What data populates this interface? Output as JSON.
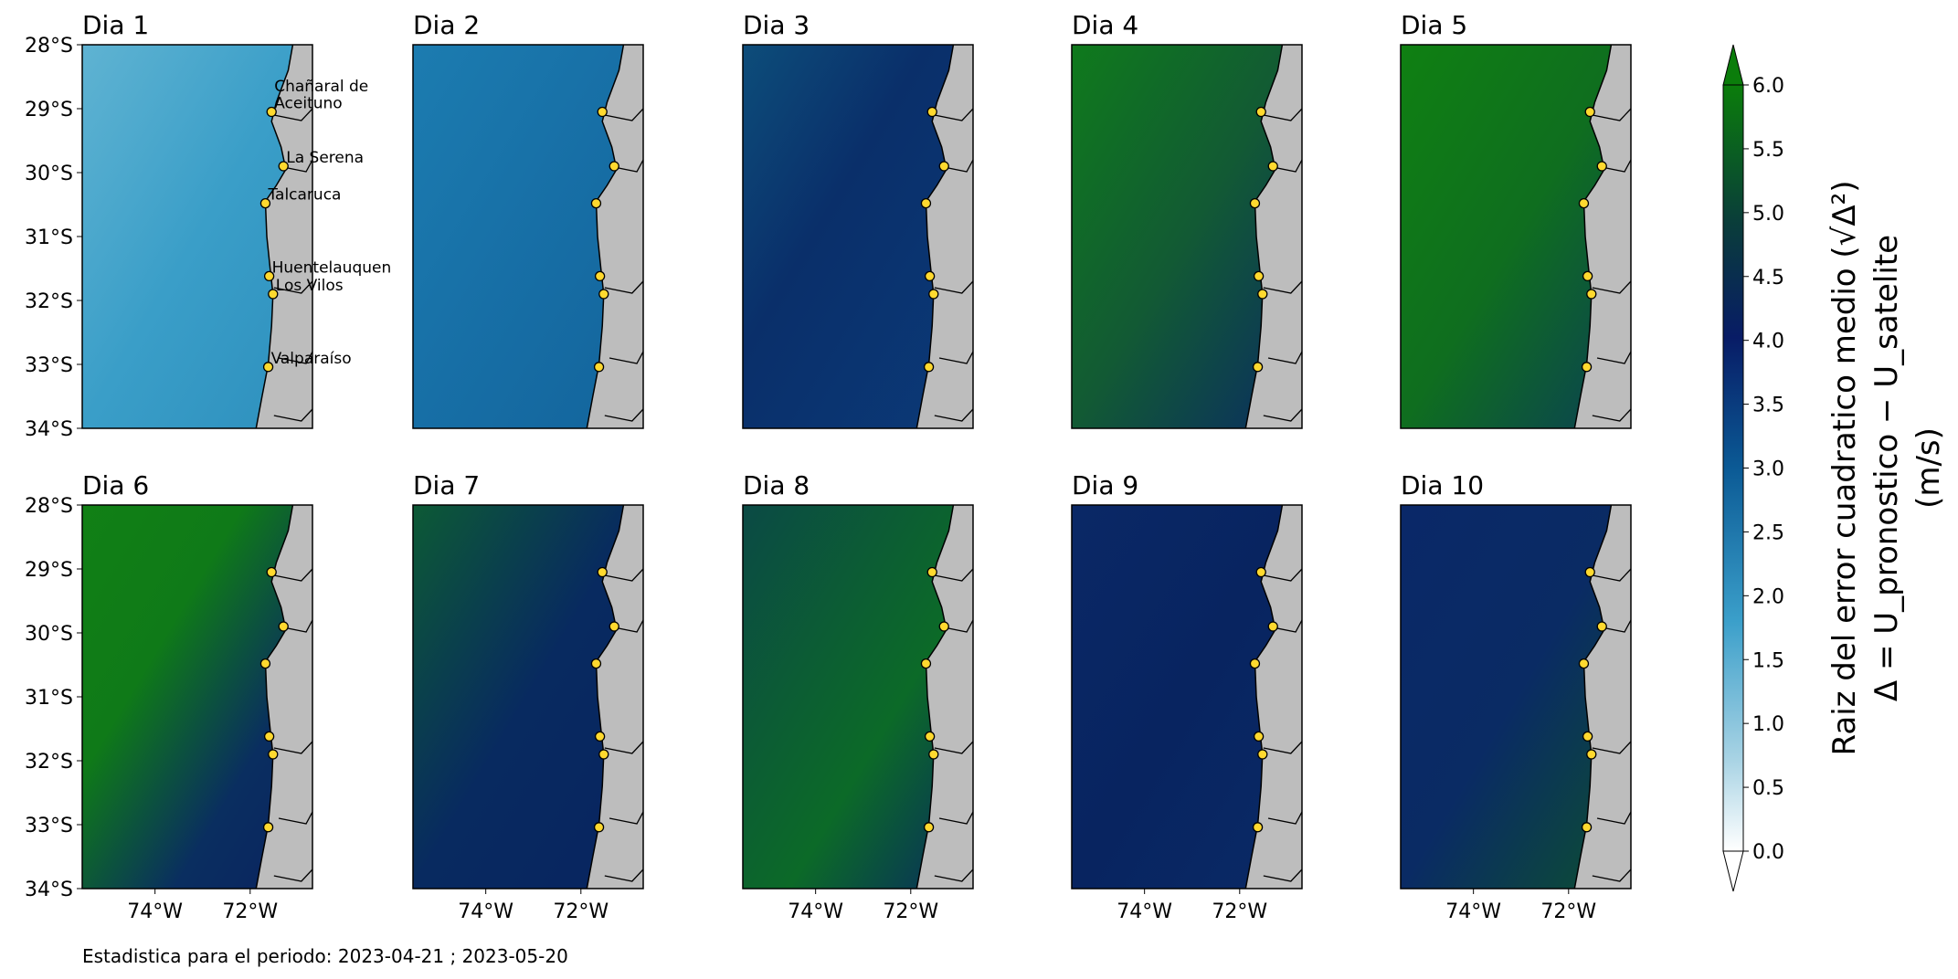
{
  "panels": [
    {
      "title": "Dia 1"
    },
    {
      "title": "Dia 2"
    },
    {
      "title": "Dia 3"
    },
    {
      "title": "Dia 4"
    },
    {
      "title": "Dia 5"
    },
    {
      "title": "Dia 6"
    },
    {
      "title": "Dia 7"
    },
    {
      "title": "Dia 8"
    },
    {
      "title": "Dia 9"
    },
    {
      "title": "Dia 10"
    }
  ],
  "lat_lim": [
    -34,
    -28
  ],
  "lat_ticks": [
    {
      "value": -28,
      "label": "28°S"
    },
    {
      "value": -29,
      "label": "29°S"
    },
    {
      "value": -30,
      "label": "30°S"
    },
    {
      "value": -31,
      "label": "31°S"
    },
    {
      "value": -32,
      "label": "32°S"
    },
    {
      "value": -33,
      "label": "33°S"
    },
    {
      "value": -34,
      "label": "34°S"
    }
  ],
  "lon_lim": [
    -75.53,
    -70.69
  ],
  "lon_ticks": [
    {
      "value": -74,
      "label": "74°W"
    },
    {
      "value": -72,
      "label": "72°W"
    }
  ],
  "cities": [
    {
      "name": "Chañaral de\nAceituno",
      "lon": -71.55,
      "lat": -29.05
    },
    {
      "name": "La Serena",
      "lon": -71.3,
      "lat": -29.9
    },
    {
      "name": "Talcaruca",
      "lon": -71.68,
      "lat": -30.48
    },
    {
      "name": "Huentelauquen",
      "lon": -71.6,
      "lat": -31.62
    },
    {
      "name": "Los Vilos",
      "lon": -71.52,
      "lat": -31.9
    },
    {
      "name": "Valparaíso",
      "lon": -71.62,
      "lat": -33.04
    }
  ],
  "colorbar": {
    "lim": [
      0,
      6
    ],
    "ticks": [
      {
        "value": 0,
        "label": "0.0"
      },
      {
        "value": 0.5,
        "label": "0.5"
      },
      {
        "value": 1,
        "label": "1.0"
      },
      {
        "value": 1.5,
        "label": "1.5"
      },
      {
        "value": 2,
        "label": "2.0"
      },
      {
        "value": 2.5,
        "label": "2.5"
      },
      {
        "value": 3,
        "label": "3.0"
      },
      {
        "value": 3.5,
        "label": "3.5"
      },
      {
        "value": 4,
        "label": "4.0"
      },
      {
        "value": 4.5,
        "label": "4.5"
      },
      {
        "value": 5,
        "label": "5.0"
      },
      {
        "value": 5.5,
        "label": "5.5"
      },
      {
        "value": 6,
        "label": "6.0"
      }
    ],
    "label_lines": [
      "Raiz del error cuadratico medio (√Δ²)",
      "Δ = U_pronostico − U_satelite",
      "(m/s)"
    ]
  },
  "footnote": "Estadistica para el periodo: 2023-04-21 ; 2023-05-20"
}
